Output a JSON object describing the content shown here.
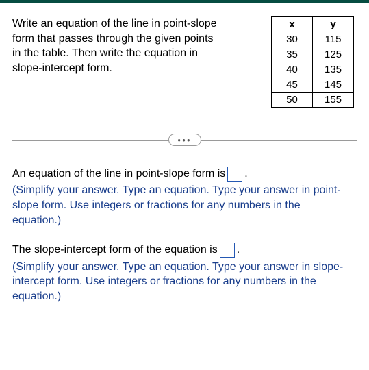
{
  "prompt": "Write an equation of the line in point-slope form that passes through the given points in the table. Then write the equation in slope-intercept form.",
  "table": {
    "header_x": "x",
    "header_y": "y",
    "rows": [
      {
        "x": "30",
        "y": "115"
      },
      {
        "x": "35",
        "y": "125"
      },
      {
        "x": "40",
        "y": "135"
      },
      {
        "x": "45",
        "y": "145"
      },
      {
        "x": "50",
        "y": "155"
      }
    ]
  },
  "divider_label": "●●●",
  "answers": {
    "ps": {
      "lead": "An equation of the line in point-slope form is ",
      "tail": ".",
      "hint": "(Simplify your answer. Type an equation. Type your answer in point-slope form. Use integers or fractions for any numbers in the equation.)"
    },
    "si": {
      "lead": "The slope-intercept form of the equation is ",
      "tail": ".",
      "hint": "(Simplify your answer. Type an equation. Type your answer in slope-intercept form. Use integers or fractions for any numbers in the equation.)"
    }
  },
  "colors": {
    "top_bar": "#064d41",
    "text": "#000000",
    "hint_text": "#1a3e8c",
    "box_border": "#2458b3",
    "divider": "#9a9a9a",
    "background": "#ffffff"
  }
}
